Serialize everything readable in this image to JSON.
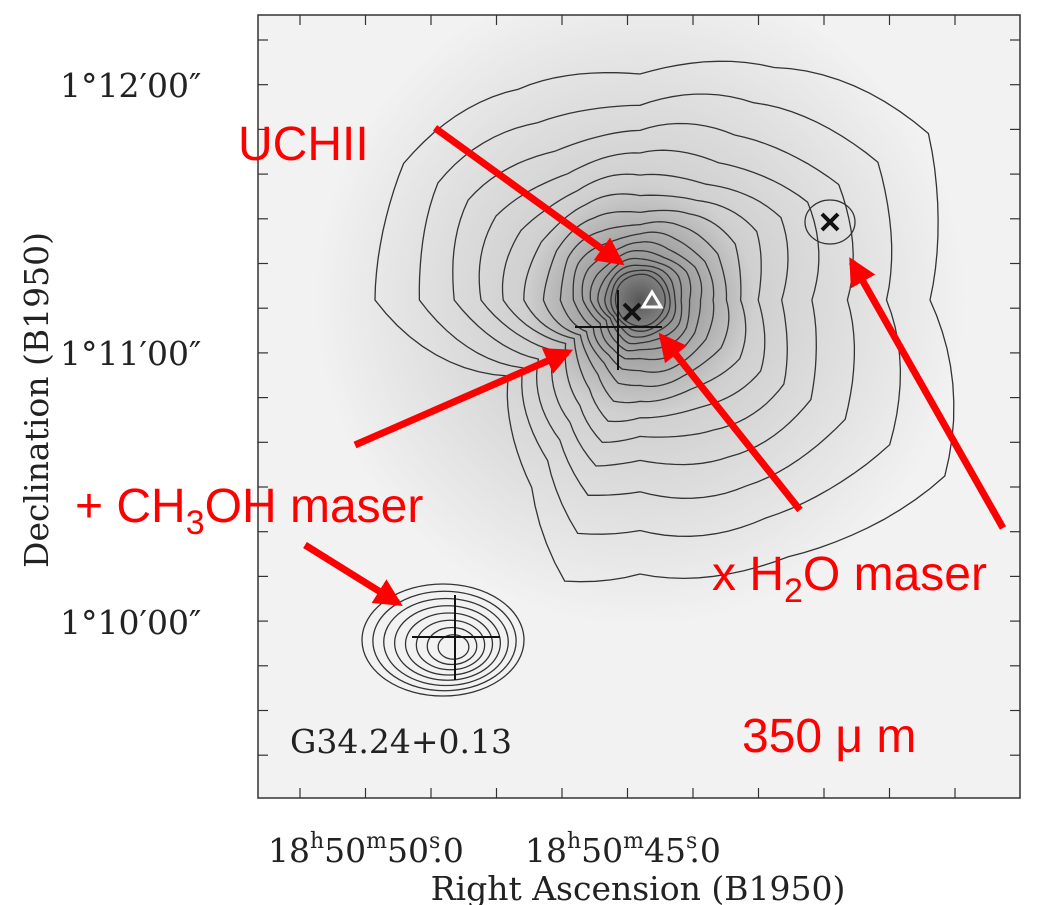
{
  "axes": {
    "x_label": "Right Ascension (B1950)",
    "y_label": "Declination (B1950)",
    "x_ticks": [
      [
        "18",
        "h",
        "50",
        "m",
        "50",
        "s",
        ".0"
      ],
      [
        "18",
        "h",
        "50",
        "m",
        "45",
        "s",
        ".0"
      ]
    ],
    "y_ticks": [
      "1°12′00″",
      "1°11′00″",
      "1°10′00″"
    ]
  },
  "field_label": "G34.24+0.13",
  "annotations": {
    "uchii": "UCHII",
    "ch3oh": [
      "+ CH",
      "3",
      "OH maser"
    ],
    "h2o": [
      "x H",
      "2",
      "O maser"
    ],
    "wavelength": "350 μ m"
  }
}
